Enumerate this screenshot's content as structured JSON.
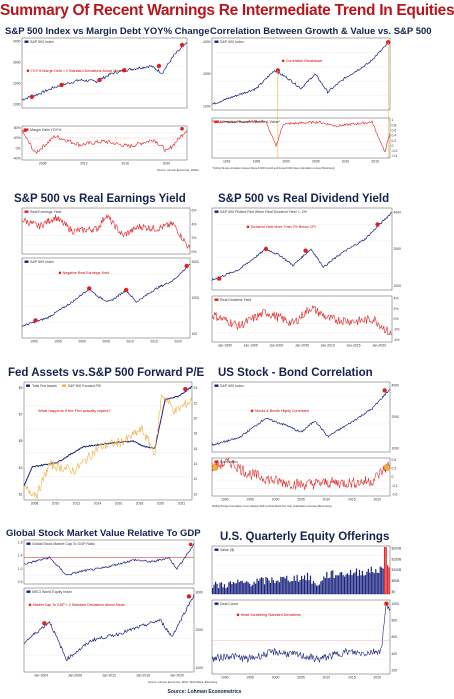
{
  "title": "Summary Of Recent Warnings Re Intermediate Trend In Equities",
  "source": "Source: Lohman Econometrics",
  "colors": {
    "navy": "#1a237e",
    "red": "#e02020",
    "orange": "#f0b040",
    "title_red": "#b8151b"
  },
  "chart_data": [
    {
      "type": "line",
      "title": "S&P 500 Index vs Margin Debt YOY% Change",
      "panels": [
        {
          "series": [
            {
              "name": "S&P 500 Index",
              "color": "#1a237e"
            }
          ],
          "annotation": "YOY% Margin Debt > 2 Standard Deviations Above Mean",
          "y_ticks": [
            "4000",
            "3000",
            "2000",
            "1000"
          ]
        },
        {
          "series": [
            {
              "name": "Margin Debt YOY%",
              "color": "#e02020"
            }
          ],
          "y_ticks": [
            "80%",
            "40%",
            "0%",
            "-40%"
          ]
        }
      ],
      "x_ticks": [
        "2008",
        "2012",
        "2016",
        "2020"
      ],
      "source_note": "Source: Lohman Economics, FINRA"
    },
    {
      "type": "line",
      "title": "Correlation Between Growth & Value vs. S&P 500",
      "panels": [
        {
          "series": [
            {
              "name": "S&P 500 Index",
              "color": "#1a237e"
            }
          ],
          "annotation": "Correlation Breakdown",
          "y_ticks": [
            "4000",
            "2000",
            "1000"
          ]
        },
        {
          "series": [
            {
              "name": "Correlation Between Growth & Value*",
              "color": "#e02020"
            }
          ],
          "y_ticks": [
            "1",
            "0.8",
            "0.6",
            "0.4",
            "0.2",
            "0",
            "-0.2",
            "-0.4"
          ]
        }
      ],
      "x_ticks": [
        "1991",
        "1995",
        "2000",
        "2005",
        "2010",
        "2016"
      ],
      "footnote": "* Rolling 52-day correlation between Russell 1000 Growth and Russell 1000 Value (calculation courtesy Bloomberg)"
    },
    {
      "type": "line",
      "title": "S&P 500 vs Real Earnings Yield",
      "panels": [
        {
          "series": [
            {
              "name": "Real Earnings Yield",
              "color": "#e02020"
            }
          ],
          "y_ticks": [
            "6%",
            "4%",
            "2%",
            "0%"
          ]
        },
        {
          "series": [
            {
              "name": "S&P 500 Index",
              "color": "#1a237e"
            }
          ],
          "annotation": "Negative Real Earnings Yield",
          "y_ticks": [
            "3000",
            "1000",
            "100"
          ]
        }
      ],
      "x_ticks": [
        "1990",
        "1995",
        "2000",
        "2005",
        "2010",
        "2015",
        "2020"
      ]
    },
    {
      "type": "line",
      "title": "S&P 500 vs Real Dividend Yield",
      "panels": [
        {
          "series": [
            {
              "name": "S&P 500 Plotted Red When Real Dividend Yield < -2%",
              "color": "#1a237e"
            }
          ],
          "annotation": "Dividend Yield More Than 2% Below CPI",
          "y_ticks": [
            "4000",
            "2000",
            "1000"
          ]
        },
        {
          "series": [
            {
              "name": "Real Dividend Yield",
              "color": "#e02020"
            }
          ],
          "y_ticks": [
            "4%",
            "2%",
            "0%",
            "-2%",
            "-4%"
          ]
        }
      ],
      "x_ticks": [
        "Jan-1990",
        "Jan-1995",
        "Jan-2000",
        "Jan-2005",
        "Jan-2010",
        "Jan-2015",
        "Jan-2020"
      ]
    },
    {
      "type": "line",
      "title": "Fed Assets vs.S&P 500 Forward P/E",
      "series": [
        {
          "name": "Total Fed Assets",
          "color": "#1a237e"
        },
        {
          "name": "S&P 500 Forward P/E",
          "color": "#f0b040"
        }
      ],
      "annotation": "What happens if the Fed actually tapers?",
      "y_left_ticks": [
        "$9",
        "$7",
        "$5",
        "$3",
        "$1"
      ],
      "y_right_ticks": [
        "24",
        "22",
        "20",
        "18",
        "16",
        "14",
        "12",
        "10"
      ],
      "x_ticks": [
        "2008",
        "2010",
        "2012",
        "2014",
        "2016",
        "2018",
        "2020",
        "2021"
      ]
    },
    {
      "type": "line",
      "title": "US Stock - Bond Correlation",
      "panels": [
        {
          "series": [
            {
              "name": "S&P 500 Index",
              "color": "#1a237e"
            }
          ],
          "annotation": "Stocks & Bonds Highly Correlated",
          "y_ticks": [
            "4000",
            "2000",
            "1000"
          ]
        },
        {
          "series": [
            {
              "name": "Correlation",
              "color": "#e02020"
            }
          ],
          "y_ticks": [
            "0.6",
            "0.3",
            "0",
            "-0.3",
            "-0.6"
          ]
        }
      ],
      "x_ticks": [
        "1990",
        "1995",
        "2000",
        "2005",
        "2010",
        "2015",
        "2020"
      ],
      "footnote": "Rolling 52-day Correlation: From Weekly S&P vs Real World Ten Year (Calculation Courtesy Bloomberg)"
    },
    {
      "type": "line",
      "title": "Global Stock Market Value Relative To GDP",
      "panels": [
        {
          "series": [
            {
              "name": "Global Stock Market Cap To GDP Ratio",
              "color": "#1a237e"
            }
          ],
          "y_ticks": [
            "1.8",
            "1.4",
            "1.0",
            "0.6"
          ]
        },
        {
          "series": [
            {
              "name": "MSCI World Equity Index",
              "color": "#1a237e"
            }
          ],
          "annotation": "Market Cap To GDP > 2 Standard Deviations Above Mean",
          "y_ticks": [
            "3000",
            "2000",
            "1000"
          ]
        }
      ],
      "x_ticks": [
        "Jan-2004",
        "Jan-2008",
        "Jan-2012",
        "Jan-2016",
        "Jan-2020"
      ],
      "source_note": "Source: Lohman Economics, MSCI, World Bank, Bloomberg"
    },
    {
      "type": "bar",
      "title": "U.S. Quarterly Equity Offerings",
      "panels": [
        {
          "series": [
            {
              "name": "Value ($)",
              "color": "#1a237e"
            }
          ],
          "y_ticks": [
            "$200B",
            "$150B",
            "$100B",
            "$50B",
            "$0"
          ]
        },
        {
          "series": [
            {
              "name": "Deal Count",
              "color": "#1a237e"
            }
          ],
          "annotation": "Head Scratching Standard Deviations",
          "y_ticks": [
            "1000",
            "800",
            "600",
            "400",
            "200"
          ]
        }
      ],
      "x_ticks": [
        "1990",
        "1995",
        "2000",
        "2005",
        "2010",
        "2015",
        "2020"
      ]
    }
  ]
}
